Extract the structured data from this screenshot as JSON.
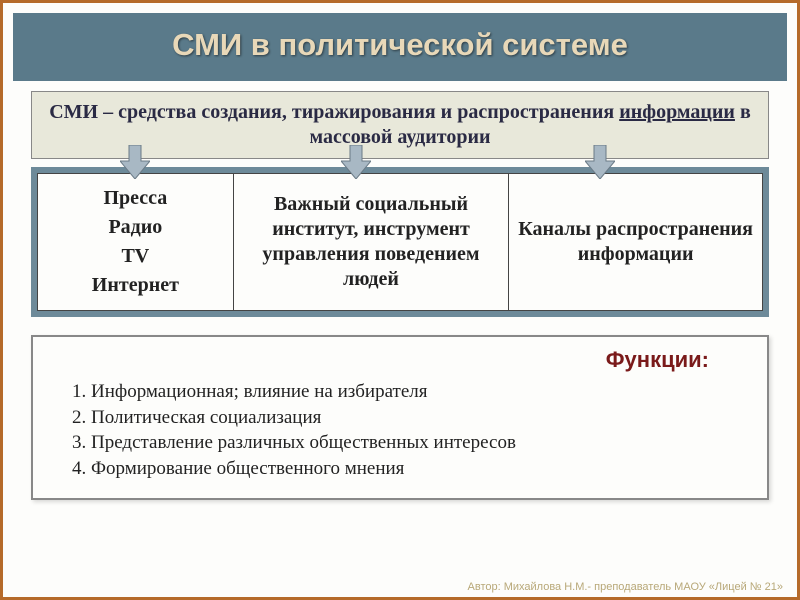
{
  "title": "СМИ в политической системе",
  "definition_html": "СМИ – средства создания, тиражирования и распространения <u>информации</u> в массовой аудитории",
  "arrows": {
    "positions_pct": [
      12,
      42,
      75
    ],
    "fill": "#a8b8c4",
    "stroke": "#6a7a86"
  },
  "table": {
    "bg": "#6d8a99",
    "col1_lines": [
      "Пресса",
      "Радио",
      "TV",
      "Интернет"
    ],
    "col2": "Важный социальный институт, инструмент управления поведением людей",
    "col3": "Каналы распространения информации"
  },
  "functions": {
    "title": "Функции:",
    "items": [
      "Информационная; влияние на избирателя",
      "Политическая социализация",
      "Представление различных общественных интересов",
      "Формирование общественного мнения"
    ]
  },
  "author": "Автор: Михайлова Н.М.- преподаватель МАОУ «Лицей № 21»",
  "colors": {
    "border": "#b56a2a",
    "title_bg": "#5a7a8a",
    "title_fg": "#e8d8b8",
    "def_bg": "#e8e8da",
    "func_title": "#7a1a1a"
  }
}
